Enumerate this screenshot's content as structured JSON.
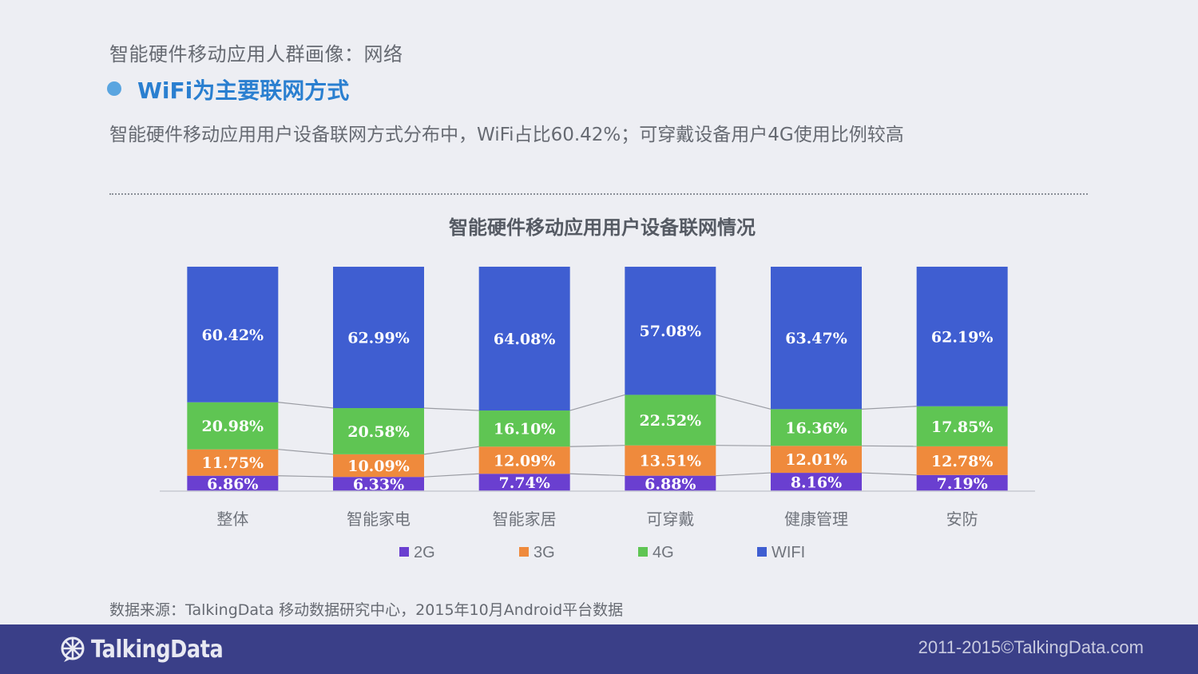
{
  "header": {
    "title": "智能硬件移动应用人群画像：网络",
    "subheading": "WiFi为主要联网方式",
    "summary": "智能硬件移动应用用户设备联网方式分布中，WiFi占比60.42%；可穿戴设备用户4G使用比例较高"
  },
  "chart_data": {
    "type": "bar",
    "stacked": true,
    "title": "智能硬件移动应用用户设备联网情况",
    "categories": [
      "整体",
      "智能家电",
      "智能家居",
      "可穿戴",
      "健康管理",
      "安防"
    ],
    "series": [
      {
        "name": "2G",
        "color": "#6a3fd0",
        "values": [
          6.86,
          6.33,
          7.74,
          6.88,
          8.16,
          7.19
        ]
      },
      {
        "name": "3G",
        "color": "#ef8a3c",
        "values": [
          11.75,
          10.09,
          12.09,
          13.51,
          12.01,
          12.78
        ]
      },
      {
        "name": "4G",
        "color": "#5fc553",
        "values": [
          20.98,
          20.58,
          16.1,
          22.52,
          16.36,
          17.85
        ]
      },
      {
        "name": "WIFI",
        "color": "#3f5ed1",
        "values": [
          60.42,
          62.99,
          64.08,
          57.08,
          63.47,
          62.19
        ]
      }
    ],
    "ylim": [
      0,
      100
    ],
    "value_suffix": "%",
    "legend": "bottom",
    "grid": false,
    "connector_lines": true
  },
  "footer": {
    "source": "数据来源：TalkingData 移动数据研究中心，2015年10月Android平台数据",
    "logo_text": "TalkingData",
    "copyright": "2011-2015©TalkingData.com"
  },
  "colors": {
    "background": "#edeef3",
    "footer_bar": "#3a3f88",
    "accent": "#2a7fd0"
  }
}
